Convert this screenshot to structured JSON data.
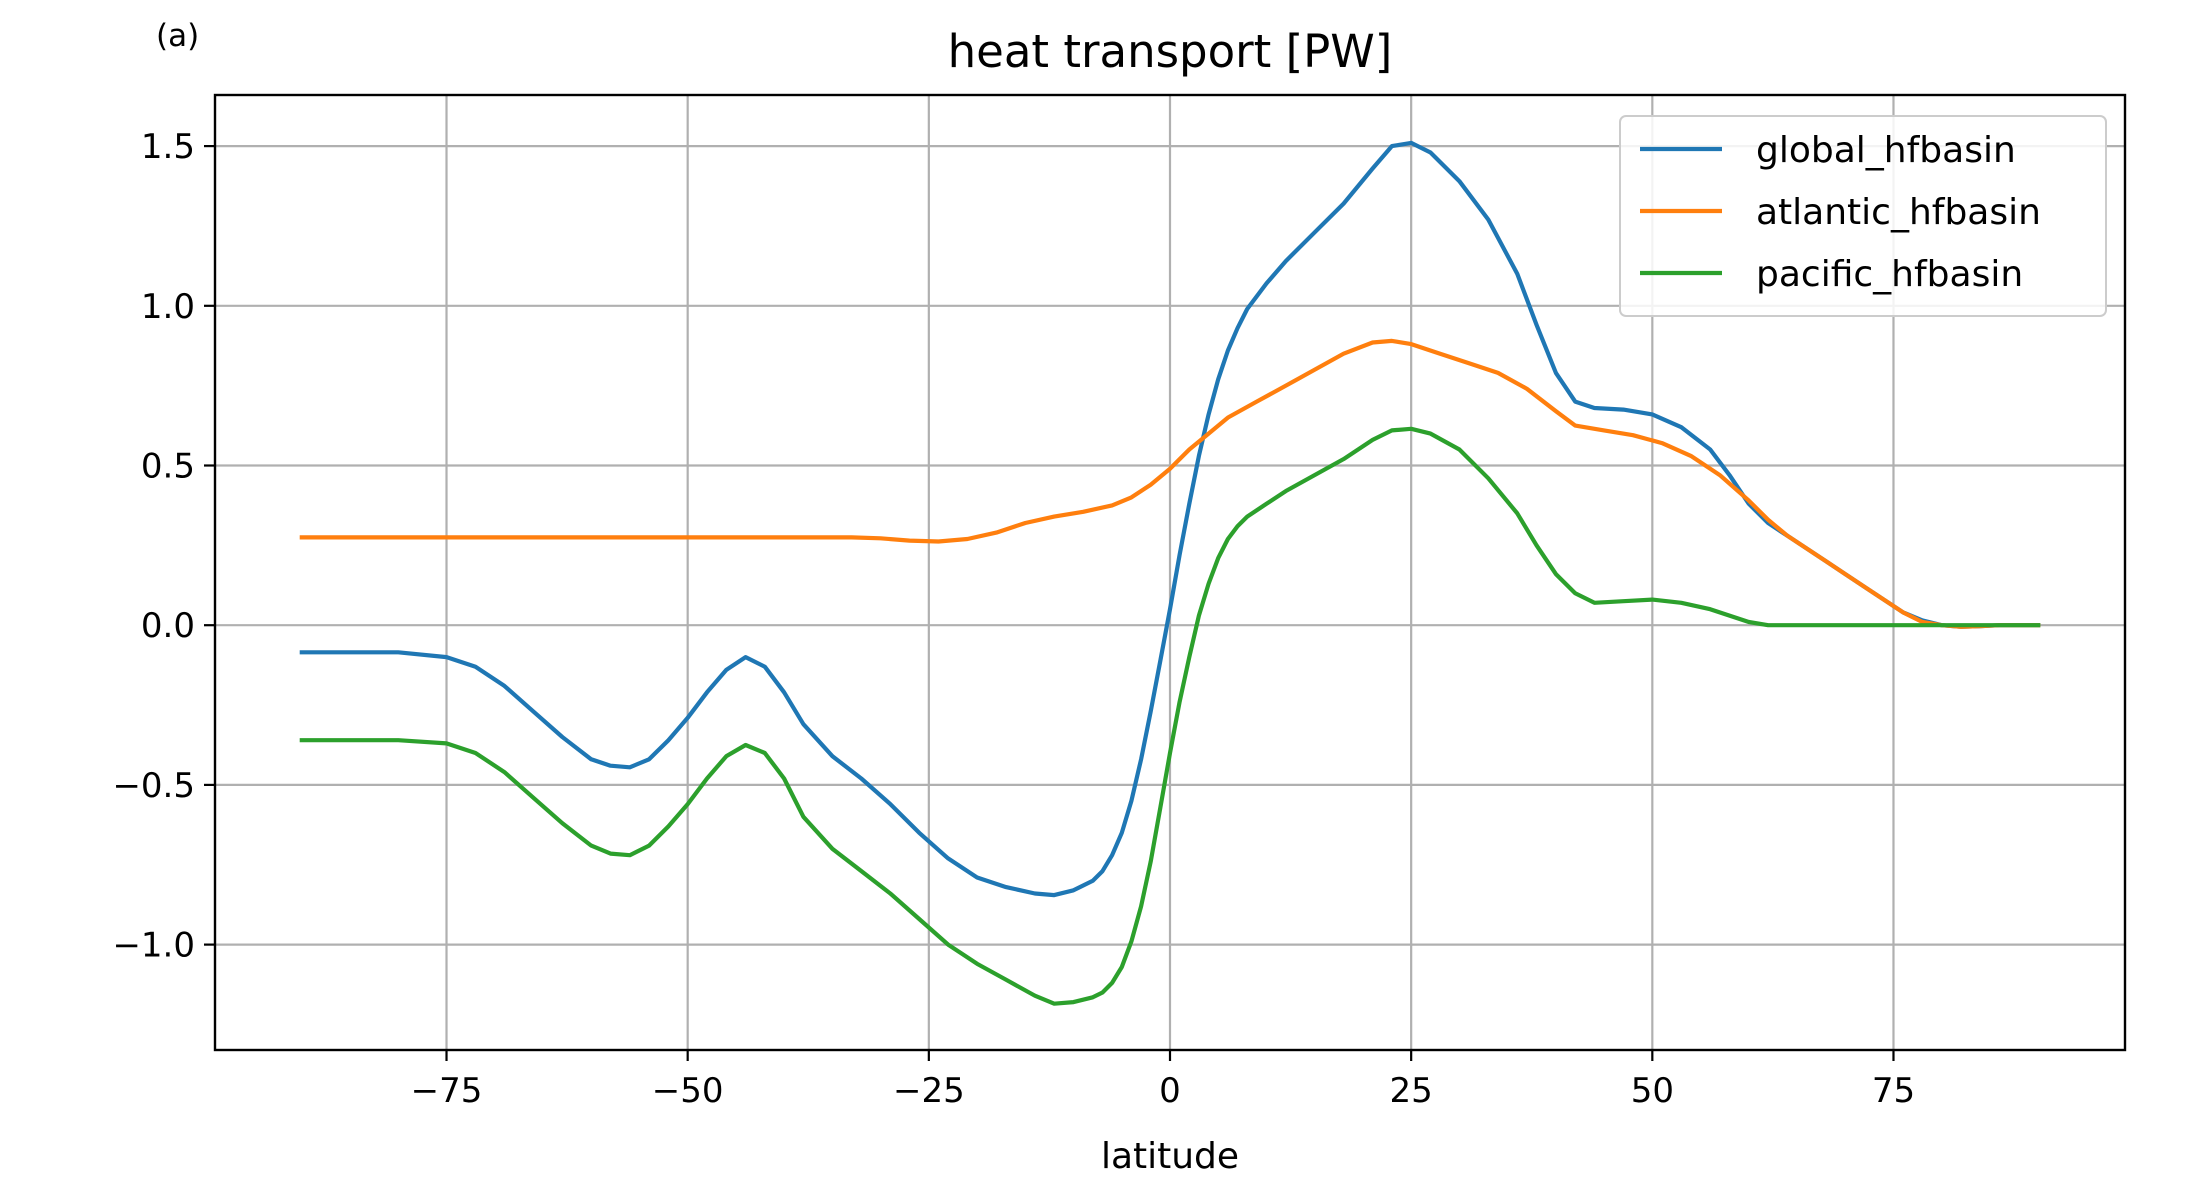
{
  "chart_data": {
    "type": "line",
    "panel_label": "(a)",
    "title": "heat transport [PW]",
    "xlabel": "latitude",
    "ylabel": "",
    "xlim": [
      -99,
      99
    ],
    "ylim": [
      -1.33,
      1.66
    ],
    "xticks": [
      -75,
      -50,
      -25,
      0,
      25,
      50,
      75
    ],
    "xtick_labels": [
      "−75",
      "−50",
      "−25",
      "0",
      "25",
      "50",
      "75"
    ],
    "yticks": [
      -1.0,
      -0.5,
      0.0,
      0.5,
      1.0,
      1.5
    ],
    "ytick_labels": [
      "−1.0",
      "−0.5",
      "0.0",
      "0.5",
      "1.0",
      "1.5"
    ],
    "grid": true,
    "legend_position": "upper right",
    "series": [
      {
        "name": "global_hfbasin",
        "color": "#1f77b4",
        "points": [
          [
            -90,
            -0.085
          ],
          [
            -85,
            -0.085
          ],
          [
            -80,
            -0.085
          ],
          [
            -75,
            -0.1
          ],
          [
            -72,
            -0.13
          ],
          [
            -69,
            -0.19
          ],
          [
            -66,
            -0.27
          ],
          [
            -63,
            -0.35
          ],
          [
            -60,
            -0.42
          ],
          [
            -58,
            -0.44
          ],
          [
            -56,
            -0.445
          ],
          [
            -54,
            -0.42
          ],
          [
            -52,
            -0.36
          ],
          [
            -50,
            -0.29
          ],
          [
            -48,
            -0.21
          ],
          [
            -46,
            -0.14
          ],
          [
            -44,
            -0.1
          ],
          [
            -42,
            -0.13
          ],
          [
            -40,
            -0.21
          ],
          [
            -38,
            -0.31
          ],
          [
            -35,
            -0.41
          ],
          [
            -32,
            -0.48
          ],
          [
            -29,
            -0.56
          ],
          [
            -26,
            -0.65
          ],
          [
            -23,
            -0.73
          ],
          [
            -20,
            -0.79
          ],
          [
            -17,
            -0.82
          ],
          [
            -14,
            -0.84
          ],
          [
            -12,
            -0.845
          ],
          [
            -10,
            -0.83
          ],
          [
            -8,
            -0.8
          ],
          [
            -7,
            -0.77
          ],
          [
            -6,
            -0.72
          ],
          [
            -5,
            -0.65
          ],
          [
            -4,
            -0.55
          ],
          [
            -3,
            -0.42
          ],
          [
            -2,
            -0.27
          ],
          [
            -1,
            -0.11
          ],
          [
            0,
            0.05
          ],
          [
            1,
            0.22
          ],
          [
            2,
            0.38
          ],
          [
            3,
            0.53
          ],
          [
            4,
            0.66
          ],
          [
            5,
            0.77
          ],
          [
            6,
            0.86
          ],
          [
            7,
            0.93
          ],
          [
            8,
            0.99
          ],
          [
            10,
            1.07
          ],
          [
            12,
            1.14
          ],
          [
            15,
            1.23
          ],
          [
            18,
            1.32
          ],
          [
            21,
            1.43
          ],
          [
            23,
            1.5
          ],
          [
            25,
            1.51
          ],
          [
            27,
            1.48
          ],
          [
            30,
            1.39
          ],
          [
            33,
            1.27
          ],
          [
            36,
            1.1
          ],
          [
            38,
            0.94
          ],
          [
            40,
            0.79
          ],
          [
            42,
            0.7
          ],
          [
            44,
            0.68
          ],
          [
            47,
            0.675
          ],
          [
            50,
            0.66
          ],
          [
            53,
            0.62
          ],
          [
            56,
            0.55
          ],
          [
            58,
            0.47
          ],
          [
            60,
            0.38
          ],
          [
            62,
            0.32
          ],
          [
            64,
            0.28
          ],
          [
            66,
            0.24
          ],
          [
            68,
            0.2
          ],
          [
            70,
            0.16
          ],
          [
            72,
            0.12
          ],
          [
            74,
            0.08
          ],
          [
            76,
            0.04
          ],
          [
            78,
            0.015
          ],
          [
            80,
            0.0
          ],
          [
            82,
            -0.005
          ],
          [
            84,
            -0.003
          ],
          [
            86,
            0.0
          ],
          [
            88,
            0.0
          ],
          [
            90,
            0.0
          ]
        ]
      },
      {
        "name": "atlantic_hfbasin",
        "color": "#ff7f0e",
        "points": [
          [
            -90,
            0.275
          ],
          [
            -80,
            0.275
          ],
          [
            -70,
            0.275
          ],
          [
            -60,
            0.275
          ],
          [
            -50,
            0.275
          ],
          [
            -40,
            0.275
          ],
          [
            -33,
            0.275
          ],
          [
            -30,
            0.272
          ],
          [
            -27,
            0.265
          ],
          [
            -24,
            0.262
          ],
          [
            -21,
            0.27
          ],
          [
            -18,
            0.29
          ],
          [
            -15,
            0.32
          ],
          [
            -12,
            0.34
          ],
          [
            -9,
            0.355
          ],
          [
            -6,
            0.375
          ],
          [
            -4,
            0.4
          ],
          [
            -2,
            0.44
          ],
          [
            0,
            0.49
          ],
          [
            2,
            0.55
          ],
          [
            4,
            0.6
          ],
          [
            6,
            0.65
          ],
          [
            9,
            0.7
          ],
          [
            12,
            0.75
          ],
          [
            15,
            0.8
          ],
          [
            18,
            0.85
          ],
          [
            21,
            0.885
          ],
          [
            23,
            0.89
          ],
          [
            25,
            0.88
          ],
          [
            28,
            0.85
          ],
          [
            31,
            0.82
          ],
          [
            34,
            0.79
          ],
          [
            37,
            0.74
          ],
          [
            40,
            0.67
          ],
          [
            42,
            0.625
          ],
          [
            45,
            0.61
          ],
          [
            48,
            0.595
          ],
          [
            51,
            0.57
          ],
          [
            54,
            0.53
          ],
          [
            57,
            0.47
          ],
          [
            60,
            0.39
          ],
          [
            62,
            0.33
          ],
          [
            64,
            0.28
          ],
          [
            66,
            0.24
          ],
          [
            68,
            0.2
          ],
          [
            70,
            0.16
          ],
          [
            72,
            0.12
          ],
          [
            74,
            0.08
          ],
          [
            76,
            0.04
          ],
          [
            78,
            0.01
          ],
          [
            80,
            0.0
          ],
          [
            82,
            -0.005
          ],
          [
            84,
            -0.003
          ],
          [
            86,
            0.0
          ],
          [
            88,
            0.0
          ],
          [
            90,
            0.0
          ]
        ]
      },
      {
        "name": "pacific_hfbasin",
        "color": "#2ca02c",
        "points": [
          [
            -90,
            -0.36
          ],
          [
            -85,
            -0.36
          ],
          [
            -80,
            -0.36
          ],
          [
            -75,
            -0.37
          ],
          [
            -72,
            -0.4
          ],
          [
            -69,
            -0.46
          ],
          [
            -66,
            -0.54
          ],
          [
            -63,
            -0.62
          ],
          [
            -60,
            -0.69
          ],
          [
            -58,
            -0.715
          ],
          [
            -56,
            -0.72
          ],
          [
            -54,
            -0.69
          ],
          [
            -52,
            -0.63
          ],
          [
            -50,
            -0.56
          ],
          [
            -48,
            -0.48
          ],
          [
            -46,
            -0.41
          ],
          [
            -44,
            -0.375
          ],
          [
            -42,
            -0.4
          ],
          [
            -40,
            -0.48
          ],
          [
            -38,
            -0.6
          ],
          [
            -35,
            -0.7
          ],
          [
            -32,
            -0.77
          ],
          [
            -29,
            -0.84
          ],
          [
            -26,
            -0.92
          ],
          [
            -23,
            -1.0
          ],
          [
            -20,
            -1.06
          ],
          [
            -17,
            -1.11
          ],
          [
            -14,
            -1.16
          ],
          [
            -12,
            -1.185
          ],
          [
            -10,
            -1.18
          ],
          [
            -8,
            -1.165
          ],
          [
            -7,
            -1.15
          ],
          [
            -6,
            -1.12
          ],
          [
            -5,
            -1.07
          ],
          [
            -4,
            -0.99
          ],
          [
            -3,
            -0.88
          ],
          [
            -2,
            -0.74
          ],
          [
            -1,
            -0.57
          ],
          [
            0,
            -0.4
          ],
          [
            1,
            -0.24
          ],
          [
            2,
            -0.1
          ],
          [
            3,
            0.03
          ],
          [
            4,
            0.13
          ],
          [
            5,
            0.21
          ],
          [
            6,
            0.27
          ],
          [
            7,
            0.31
          ],
          [
            8,
            0.34
          ],
          [
            10,
            0.38
          ],
          [
            12,
            0.42
          ],
          [
            15,
            0.47
          ],
          [
            18,
            0.52
          ],
          [
            21,
            0.58
          ],
          [
            23,
            0.61
          ],
          [
            25,
            0.615
          ],
          [
            27,
            0.6
          ],
          [
            30,
            0.55
          ],
          [
            33,
            0.46
          ],
          [
            36,
            0.35
          ],
          [
            38,
            0.25
          ],
          [
            40,
            0.16
          ],
          [
            42,
            0.1
          ],
          [
            44,
            0.07
          ],
          [
            47,
            0.075
          ],
          [
            50,
            0.08
          ],
          [
            53,
            0.07
          ],
          [
            56,
            0.05
          ],
          [
            58,
            0.03
          ],
          [
            60,
            0.01
          ],
          [
            62,
            0.0
          ],
          [
            65,
            0.0
          ],
          [
            70,
            0.0
          ],
          [
            75,
            0.0
          ],
          [
            80,
            0.0
          ],
          [
            85,
            0.0
          ],
          [
            90,
            0.0
          ]
        ]
      }
    ]
  }
}
